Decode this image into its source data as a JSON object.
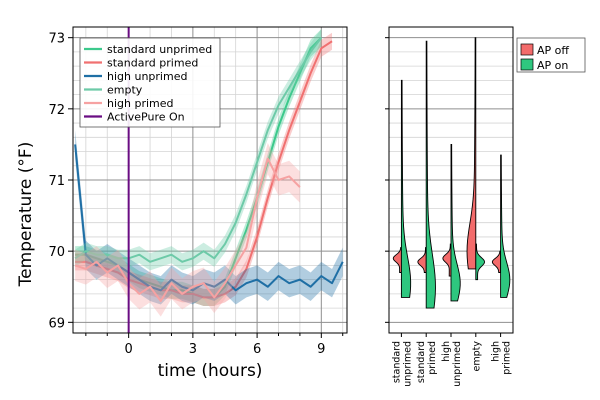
{
  "chart_data": [
    {
      "type": "line",
      "xlabel": "time (hours)",
      "ylabel": "Temperature (°F)",
      "xlim": [
        -2.6,
        10.2
      ],
      "ylim": [
        68.85,
        73.15
      ],
      "xticks": [
        0,
        3,
        6,
        9
      ],
      "yticks": [
        69,
        70,
        71,
        72,
        73
      ],
      "grid": true,
      "legend_position": "top-left",
      "vline": {
        "x": 0,
        "label": "ActivePure On",
        "color": "#6a0d83"
      },
      "series": [
        {
          "name": "standard unprimed",
          "color": "#3cc98c",
          "x": [
            -2.5,
            -2,
            -1.5,
            -1,
            -0.5,
            0,
            0.5,
            1,
            1.5,
            2,
            2.5,
            3,
            3.5,
            4,
            4.5,
            5,
            5.5,
            6,
            6.5,
            7,
            7.5,
            8,
            8.5,
            9
          ],
          "values": [
            69.95,
            69.95,
            69.9,
            69.85,
            69.8,
            69.7,
            69.6,
            69.55,
            69.5,
            69.45,
            69.45,
            69.4,
            69.35,
            69.35,
            69.5,
            69.9,
            70.3,
            70.75,
            71.25,
            71.75,
            72.15,
            72.5,
            72.85,
            73.0
          ],
          "band": 0.12
        },
        {
          "name": "standard primed",
          "color": "#f07070",
          "x": [
            -2.5,
            -2,
            -1.5,
            -1,
            -0.5,
            0,
            0.5,
            1,
            1.5,
            2,
            2.5,
            3,
            3.5,
            4,
            4.5,
            5,
            5.5,
            6,
            6.5,
            7,
            7.5,
            8,
            8.5,
            9,
            9.5
          ],
          "values": [
            69.85,
            69.85,
            69.8,
            69.75,
            69.7,
            69.6,
            69.55,
            69.5,
            69.45,
            69.45,
            69.4,
            69.4,
            69.35,
            69.35,
            69.4,
            69.5,
            69.75,
            70.2,
            70.75,
            71.25,
            71.7,
            72.1,
            72.5,
            72.85,
            72.95
          ],
          "band": 0.12
        },
        {
          "name": "high unprimed",
          "color": "#1f6fa5",
          "x": [
            -2.5,
            -2,
            -1.5,
            -1,
            -0.5,
            0,
            0.5,
            1,
            1.5,
            2,
            2.5,
            3,
            3.5,
            4,
            4.5,
            5,
            5.5,
            6,
            6.5,
            7,
            7.5,
            8,
            8.5,
            9,
            9.5,
            10
          ],
          "values": [
            71.5,
            69.95,
            69.8,
            69.9,
            69.8,
            69.7,
            69.6,
            69.5,
            69.45,
            69.6,
            69.5,
            69.45,
            69.55,
            69.5,
            69.6,
            69.45,
            69.55,
            69.6,
            69.5,
            69.65,
            69.55,
            69.6,
            69.5,
            69.65,
            69.55,
            69.85
          ],
          "band": 0.2
        },
        {
          "name": "empty",
          "color": "#6dcaa8",
          "x": [
            -2.5,
            -2,
            -1.5,
            -1,
            -0.5,
            0,
            0.5,
            1,
            1.5,
            2,
            2.5,
            3,
            3.5,
            4,
            4.5,
            5,
            5.5,
            6,
            6.5,
            7,
            7.5,
            8,
            8.5,
            9
          ],
          "values": [
            69.9,
            70.0,
            69.95,
            69.95,
            69.9,
            69.9,
            69.95,
            69.85,
            69.9,
            69.95,
            69.85,
            69.9,
            70.0,
            69.9,
            70.1,
            70.4,
            70.8,
            71.25,
            71.7,
            72.05,
            72.3,
            72.55,
            72.8,
            73.0
          ],
          "band": 0.12
        },
        {
          "name": "high primed",
          "color": "#f6a2a2",
          "x": [
            -2.5,
            -2,
            -1.5,
            -1,
            -0.5,
            0,
            0.5,
            1,
            1.5,
            2,
            2.5,
            3,
            3.5,
            4,
            4.5,
            5,
            5.5,
            6,
            6.5,
            7,
            7.5,
            8
          ],
          "values": [
            69.8,
            69.75,
            69.85,
            69.7,
            69.8,
            69.55,
            69.4,
            69.5,
            69.3,
            69.55,
            69.4,
            69.5,
            69.55,
            69.35,
            69.55,
            69.8,
            70.05,
            70.75,
            71.3,
            71.0,
            71.05,
            70.9
          ],
          "band": 0.22
        }
      ]
    },
    {
      "type": "violin",
      "categories": [
        "standard unprimed",
        "standard primed",
        "high unprimed",
        "empty",
        "high primed"
      ],
      "ylim": [
        68.85,
        73.15
      ],
      "grid": true,
      "legend_position": "top-right",
      "series": [
        {
          "name": "AP off",
          "color": "#f36b6b",
          "distributions": [
            {
              "category": "standard unprimed",
              "min": 69.7,
              "max": 70.05,
              "peak": 69.9
            },
            {
              "category": "standard primed",
              "min": 69.7,
              "max": 70.05,
              "peak": 69.85
            },
            {
              "category": "high unprimed",
              "min": 69.65,
              "max": 70.1,
              "peak": 69.9
            },
            {
              "category": "empty",
              "min": 69.75,
              "max": 73.0,
              "peak": 70.0
            },
            {
              "category": "high primed",
              "min": 69.7,
              "max": 70.0,
              "peak": 69.85
            }
          ]
        },
        {
          "name": "AP on",
          "color": "#2ec77f",
          "distributions": [
            {
              "category": "standard unprimed",
              "min": 69.35,
              "max": 72.4,
              "peak": 69.55
            },
            {
              "category": "standard primed",
              "min": 69.2,
              "max": 72.95,
              "peak": 69.5
            },
            {
              "category": "high unprimed",
              "min": 69.3,
              "max": 71.5,
              "peak": 69.55
            },
            {
              "category": "empty",
              "min": 69.6,
              "max": 70.1,
              "peak": 69.85
            },
            {
              "category": "high primed",
              "min": 69.35,
              "max": 71.35,
              "peak": 69.6
            }
          ]
        }
      ]
    }
  ]
}
